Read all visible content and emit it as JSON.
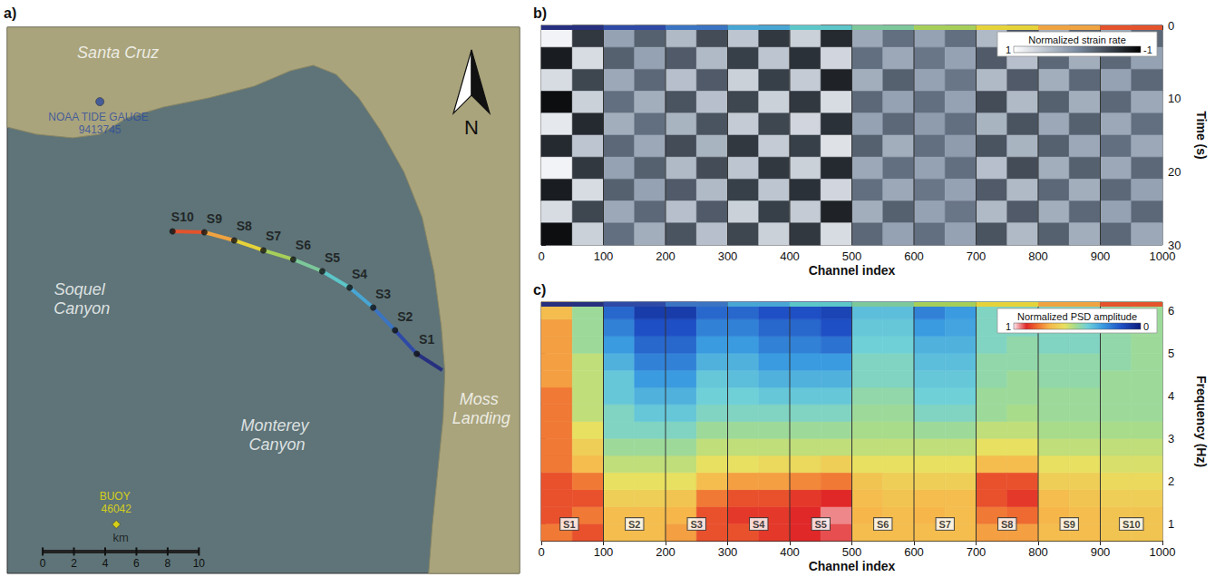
{
  "chart_data": [
    {
      "type": "map",
      "letter": "a)",
      "xlim": [
        0,
        32.8
      ],
      "ylim": [
        0,
        35
      ],
      "tick_labels": false,
      "land": [
        [
          0,
          28.6
        ],
        [
          1.86,
          28.14
        ],
        [
          4.19,
          27.91
        ],
        [
          5.93,
          28.14
        ],
        [
          7.67,
          29.19
        ],
        [
          10.0,
          29.88
        ],
        [
          12.91,
          30.47
        ],
        [
          15.81,
          31.22
        ],
        [
          18.14,
          32.21
        ],
        [
          19.59,
          32.56
        ],
        [
          21.05,
          31.98
        ],
        [
          22.5,
          30.47
        ],
        [
          23.95,
          28.31
        ],
        [
          25.41,
          25.7
        ],
        [
          26.57,
          22.79
        ],
        [
          27.33,
          19.3
        ],
        [
          27.79,
          15.81
        ],
        [
          28.02,
          12.91
        ],
        [
          27.91,
          10.0
        ],
        [
          27.56,
          6.51
        ],
        [
          27.21,
          3.02
        ],
        [
          26.98,
          0
        ],
        [
          32.8,
          0
        ],
        [
          32.8,
          35
        ],
        [
          0,
          35
        ]
      ],
      "cable_start": [
        27.85,
        13.02
      ],
      "stations": [
        {
          "name": "S1",
          "x": 26.22,
          "y": 14.07,
          "color": "#27307f",
          "channel_range": [
            0,
            100
          ]
        },
        {
          "name": "S2",
          "x": 24.83,
          "y": 15.58,
          "color": "#2f4aa6",
          "channel_range": [
            100,
            200
          ]
        },
        {
          "name": "S3",
          "x": 23.43,
          "y": 17.03,
          "color": "#3b74c2",
          "channel_range": [
            200,
            300
          ]
        },
        {
          "name": "S4",
          "x": 21.92,
          "y": 18.31,
          "color": "#48a6d4",
          "channel_range": [
            300,
            400
          ]
        },
        {
          "name": "S5",
          "x": 20.17,
          "y": 19.36,
          "color": "#5cc6c9",
          "channel_range": [
            400,
            500
          ]
        },
        {
          "name": "S6",
          "x": 18.31,
          "y": 20.12,
          "color": "#7cc89a",
          "channel_range": [
            500,
            600
          ]
        },
        {
          "name": "S7",
          "x": 16.4,
          "y": 20.7,
          "color": "#a6cf5a",
          "channel_range": [
            600,
            700
          ]
        },
        {
          "name": "S8",
          "x": 14.53,
          "y": 21.34,
          "color": "#e6d33a",
          "channel_range": [
            700,
            800
          ]
        },
        {
          "name": "S9",
          "x": 12.62,
          "y": 21.86,
          "color": "#f0a340",
          "channel_range": [
            800,
            900
          ]
        },
        {
          "name": "S10",
          "x": 10.58,
          "y": 21.92,
          "color": "#e4532c",
          "channel_range": [
            900,
            1000
          ]
        }
      ],
      "places": [
        {
          "name": "Santa Cruz",
          "x": 7.09,
          "y": 33.37,
          "color": "#ffffff"
        },
        {
          "name": "NOAA TIDE GAUGE 9413745",
          "x": 5.93,
          "y": 30.23,
          "color": "#2d4aa0",
          "marker": "circle"
        },
        {
          "name": "Soquel Canyon",
          "x": 4.77,
          "y": 17.56,
          "color": "#ffffff"
        },
        {
          "name": "Monterey Canyon",
          "x": 17.27,
          "y": 8.84,
          "color": "#ffffff"
        },
        {
          "name": "Moss Landing",
          "x": 30.35,
          "y": 10.58,
          "color": "#ffffff"
        },
        {
          "name": "BUOY 46042",
          "x": 6.98,
          "y": 3.14,
          "color": "#f2e600",
          "marker": "diamond"
        }
      ],
      "scale_bar": {
        "label": "km",
        "ticks": [
          0,
          2,
          4,
          6,
          8,
          10
        ]
      },
      "north": "N"
    },
    {
      "type": "heatmap",
      "letter": "b)",
      "x_label": "Channel index",
      "y_label": "Time (s)",
      "xlim": [
        0,
        1000
      ],
      "xticks": [
        0,
        100,
        200,
        300,
        400,
        500,
        600,
        700,
        800,
        900,
        1000
      ],
      "ylim": [
        30,
        0
      ],
      "yticks": [
        0,
        10,
        20,
        30
      ],
      "colorbar": {
        "title": "Normalized strain rate",
        "clim": [
          -1,
          1
        ],
        "ticks": [
          1,
          -1
        ]
      },
      "x_bins": [
        0,
        50,
        100,
        150,
        200,
        250,
        300,
        350,
        400,
        450,
        500,
        550,
        600,
        650,
        700,
        750,
        800,
        850,
        900,
        950,
        1000
      ],
      "y_bins": [
        0,
        3,
        6,
        9,
        12,
        15,
        18,
        21,
        24,
        27,
        30
      ],
      "cells": [
        [
          0.9,
          -0.8,
          0.7,
          -0.9,
          0.8,
          -0.7,
          0.9,
          -0.8,
          0.7,
          -0.9
        ],
        [
          -0.6,
          0.7,
          -0.5,
          0.6,
          -0.7,
          0.5,
          -0.6,
          0.7,
          -0.5,
          0.6
        ],
        [
          0.2,
          -0.3,
          0.25,
          -0.2,
          0.3,
          -0.25,
          0.2,
          -0.3,
          0.25,
          -0.2
        ],
        [
          -0.3,
          0.2,
          -0.25,
          0.3,
          -0.2,
          0.25,
          -0.3,
          0.2,
          -0.25,
          0.3
        ],
        [
          0.4,
          -0.35,
          0.45,
          -0.4,
          0.35,
          -0.45,
          0.4,
          -0.35,
          0.45,
          -0.4
        ],
        [
          -0.45,
          0.4,
          -0.35,
          0.45,
          -0.4,
          0.35,
          -0.45,
          0.4,
          -0.35,
          0.45
        ],
        [
          0.5,
          -0.55,
          0.6,
          -0.5,
          0.55,
          -0.6,
          0.5,
          -0.55,
          0.6,
          -0.5
        ],
        [
          -0.6,
          0.5,
          -0.55,
          0.6,
          -0.5,
          0.55,
          -0.6,
          0.5,
          -0.55,
          0.6
        ],
        [
          0.6,
          -0.65,
          0.55,
          -0.6,
          0.65,
          -0.55,
          0.6,
          -0.65,
          0.55,
          -0.6
        ],
        [
          -0.7,
          0.65,
          -0.75,
          0.7,
          -0.65,
          0.75,
          -0.7,
          0.65,
          -0.75,
          0.7
        ],
        [
          0.25,
          -0.2,
          0.3,
          -0.25,
          0.2,
          -0.3,
          0.25,
          -0.2,
          0.3,
          -0.25
        ],
        [
          -0.2,
          0.25,
          -0.3,
          0.2,
          -0.25,
          0.3,
          -0.2,
          0.25,
          -0.3,
          0.2
        ],
        [
          0.2,
          -0.15,
          0.2,
          -0.2,
          0.15,
          -0.2,
          0.2,
          -0.15,
          0.2,
          -0.2
        ],
        [
          -0.2,
          0.2,
          -0.15,
          0.2,
          -0.2,
          0.15,
          -0.2,
          0.2,
          -0.15,
          0.2
        ],
        [
          0.4,
          -0.35,
          0.4,
          -0.45,
          0.35,
          -0.4,
          0.45,
          -0.35,
          0.4,
          -0.4
        ],
        [
          -0.4,
          0.45,
          -0.35,
          0.4,
          -0.4,
          0.35,
          -0.45,
          0.4,
          -0.35,
          0.4
        ],
        [
          0.3,
          -0.25,
          0.3,
          -0.3,
          0.25,
          -0.3,
          0.3,
          -0.25,
          0.3,
          -0.3
        ],
        [
          -0.3,
          0.3,
          -0.25,
          0.3,
          -0.3,
          0.25,
          -0.3,
          0.3,
          -0.25,
          0.3
        ],
        [
          0.25,
          -0.25,
          0.2,
          -0.25,
          0.25,
          -0.2,
          0.25,
          -0.25,
          0.2,
          -0.25
        ],
        [
          -0.25,
          0.2,
          -0.25,
          0.25,
          -0.2,
          0.25,
          -0.25,
          0.2,
          -0.25,
          0.25
        ]
      ]
    },
    {
      "type": "heatmap",
      "letter": "c)",
      "x_label": "Channel index",
      "y_label": "Frequency (Hz)",
      "xlim": [
        0,
        1000
      ],
      "xticks": [
        0,
        100,
        200,
        300,
        400,
        500,
        600,
        700,
        800,
        900,
        1000
      ],
      "ylim": [
        0.6,
        6.2
      ],
      "yticks": [
        1,
        2,
        3,
        4,
        5,
        6
      ],
      "colorbar": {
        "title": "Normalized PSD amplitude",
        "clim": [
          0,
          1
        ],
        "ticks": [
          1,
          0
        ]
      },
      "station_labels": [
        {
          "name": "S1",
          "channel": 45
        },
        {
          "name": "S2",
          "channel": 150
        },
        {
          "name": "S3",
          "channel": 250
        },
        {
          "name": "S4",
          "channel": 350
        },
        {
          "name": "S5",
          "channel": 450
        },
        {
          "name": "S6",
          "channel": 550
        },
        {
          "name": "S7",
          "channel": 650
        },
        {
          "name": "S8",
          "channel": 750
        },
        {
          "name": "S9",
          "channel": 850
        },
        {
          "name": "S10",
          "channel": 950
        }
      ],
      "x_bins": [
        0,
        50,
        100,
        150,
        200,
        250,
        300,
        350,
        400,
        450,
        500,
        550,
        600,
        650,
        700,
        750,
        800,
        850,
        900,
        950,
        1000
      ],
      "y_bins": [
        0.6,
        1.0,
        1.4,
        1.8,
        2.2,
        2.6,
        3.0,
        3.4,
        3.8,
        4.2,
        4.6,
        5.0,
        5.4,
        5.8,
        6.2
      ],
      "cells": [
        [
          0.8,
          0.85,
          0.85,
          0.85,
          0.8,
          0.8,
          0.8,
          0.8,
          0.8,
          0.75,
          0.75,
          0.75,
          0.75,
          0.7
        ],
        [
          0.85,
          0.8,
          0.85,
          0.8,
          0.7,
          0.65,
          0.6,
          0.55,
          0.55,
          0.55,
          0.55,
          0.5,
          0.5,
          0.5
        ],
        [
          0.7,
          0.7,
          0.65,
          0.6,
          0.55,
          0.5,
          0.45,
          0.45,
          0.4,
          0.4,
          0.35,
          0.3,
          0.25,
          0.2
        ],
        [
          0.7,
          0.7,
          0.65,
          0.6,
          0.55,
          0.5,
          0.45,
          0.4,
          0.35,
          0.3,
          0.25,
          0.2,
          0.15,
          0.1
        ],
        [
          0.75,
          0.72,
          0.68,
          0.6,
          0.55,
          0.5,
          0.45,
          0.4,
          0.35,
          0.3,
          0.25,
          0.2,
          0.15,
          0.1
        ],
        [
          0.85,
          0.85,
          0.8,
          0.7,
          0.6,
          0.55,
          0.5,
          0.45,
          0.42,
          0.4,
          0.35,
          0.3,
          0.25,
          0.2
        ],
        [
          0.85,
          0.88,
          0.85,
          0.75,
          0.6,
          0.55,
          0.5,
          0.45,
          0.42,
          0.38,
          0.35,
          0.3,
          0.25,
          0.2
        ],
        [
          0.88,
          0.88,
          0.85,
          0.75,
          0.62,
          0.55,
          0.5,
          0.45,
          0.4,
          0.35,
          0.3,
          0.25,
          0.2,
          0.15
        ],
        [
          0.9,
          0.9,
          0.88,
          0.78,
          0.62,
          0.55,
          0.5,
          0.45,
          0.4,
          0.35,
          0.3,
          0.25,
          0.2,
          0.15
        ],
        [
          0.92,
          0.95,
          0.9,
          0.8,
          0.65,
          0.55,
          0.5,
          0.45,
          0.4,
          0.35,
          0.3,
          0.22,
          0.15,
          0.12
        ],
        [
          0.7,
          0.72,
          0.7,
          0.68,
          0.6,
          0.55,
          0.52,
          0.5,
          0.48,
          0.45,
          0.45,
          0.42,
          0.4,
          0.38
        ],
        [
          0.7,
          0.7,
          0.68,
          0.65,
          0.6,
          0.55,
          0.52,
          0.5,
          0.48,
          0.45,
          0.45,
          0.42,
          0.4,
          0.38
        ],
        [
          0.7,
          0.72,
          0.7,
          0.65,
          0.6,
          0.55,
          0.5,
          0.45,
          0.42,
          0.4,
          0.38,
          0.35,
          0.3,
          0.25
        ],
        [
          0.7,
          0.7,
          0.7,
          0.65,
          0.6,
          0.55,
          0.5,
          0.45,
          0.42,
          0.4,
          0.38,
          0.35,
          0.32,
          0.3
        ],
        [
          0.75,
          0.8,
          0.85,
          0.85,
          0.7,
          0.6,
          0.55,
          0.5,
          0.5,
          0.48,
          0.48,
          0.45,
          0.45,
          0.45
        ],
        [
          0.75,
          0.82,
          0.88,
          0.85,
          0.7,
          0.6,
          0.55,
          0.52,
          0.5,
          0.5,
          0.48,
          0.48,
          0.45,
          0.45
        ],
        [
          0.7,
          0.72,
          0.7,
          0.65,
          0.6,
          0.55,
          0.52,
          0.5,
          0.5,
          0.48,
          0.48,
          0.45,
          0.45,
          0.45
        ],
        [
          0.7,
          0.7,
          0.68,
          0.65,
          0.6,
          0.55,
          0.52,
          0.5,
          0.5,
          0.48,
          0.48,
          0.45,
          0.45,
          0.45
        ],
        [
          0.68,
          0.68,
          0.65,
          0.62,
          0.58,
          0.55,
          0.52,
          0.5,
          0.5,
          0.5,
          0.48,
          0.48,
          0.48,
          0.48
        ],
        [
          0.68,
          0.68,
          0.65,
          0.62,
          0.58,
          0.55,
          0.52,
          0.5,
          0.5,
          0.5,
          0.5,
          0.5,
          0.5,
          0.5
        ]
      ]
    }
  ]
}
